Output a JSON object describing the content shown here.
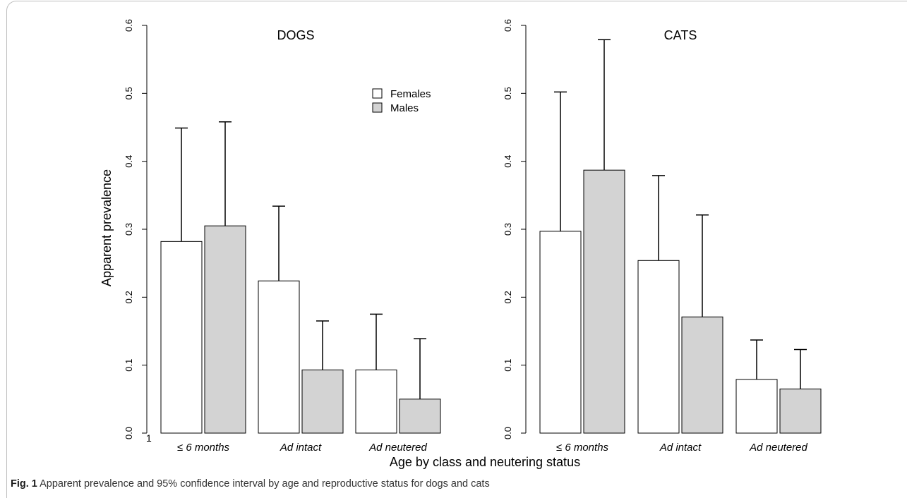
{
  "figure": {
    "caption_label": "Fig. 1",
    "caption_text": "Apparent prevalence and 95% confidence interval by age and reproductive status for dogs and cats",
    "ylabel": "Apparent prevalence",
    "xlabel": "Age by class and neutering status",
    "stray_label": "1"
  },
  "chart_data": [
    {
      "type": "bar",
      "title": "DOGS",
      "categories": [
        "≤ 6 months",
        "Ad intact",
        "Ad neutered"
      ],
      "series": [
        {
          "name": "Females",
          "color": "#ffffff",
          "values": [
            0.282,
            0.224,
            0.093
          ],
          "ci_upper": [
            0.449,
            0.334,
            0.175
          ]
        },
        {
          "name": "Males",
          "color": "#d3d3d3",
          "values": [
            0.305,
            0.093,
            0.05
          ],
          "ci_upper": [
            0.458,
            0.165,
            0.139
          ]
        }
      ],
      "ylim": [
        0,
        0.6
      ],
      "yticks": [
        "0.0",
        "0.1",
        "0.2",
        "0.3",
        "0.4",
        "0.5",
        "0.6"
      ],
      "ylabel": "Apparent prevalence",
      "legend": "top-right"
    },
    {
      "type": "bar",
      "title": "CATS",
      "categories": [
        "≤ 6 months",
        "Ad intact",
        "Ad neutered"
      ],
      "series": [
        {
          "name": "Females",
          "color": "#ffffff",
          "values": [
            0.297,
            0.254,
            0.079
          ],
          "ci_upper": [
            0.502,
            0.379,
            0.137
          ]
        },
        {
          "name": "Males",
          "color": "#d3d3d3",
          "values": [
            0.387,
            0.171,
            0.065
          ],
          "ci_upper": [
            0.579,
            0.321,
            0.123
          ]
        }
      ],
      "ylim": [
        0,
        0.6
      ],
      "yticks": [
        "0.0",
        "0.1",
        "0.2",
        "0.3",
        "0.4",
        "0.5",
        "0.6"
      ]
    }
  ]
}
